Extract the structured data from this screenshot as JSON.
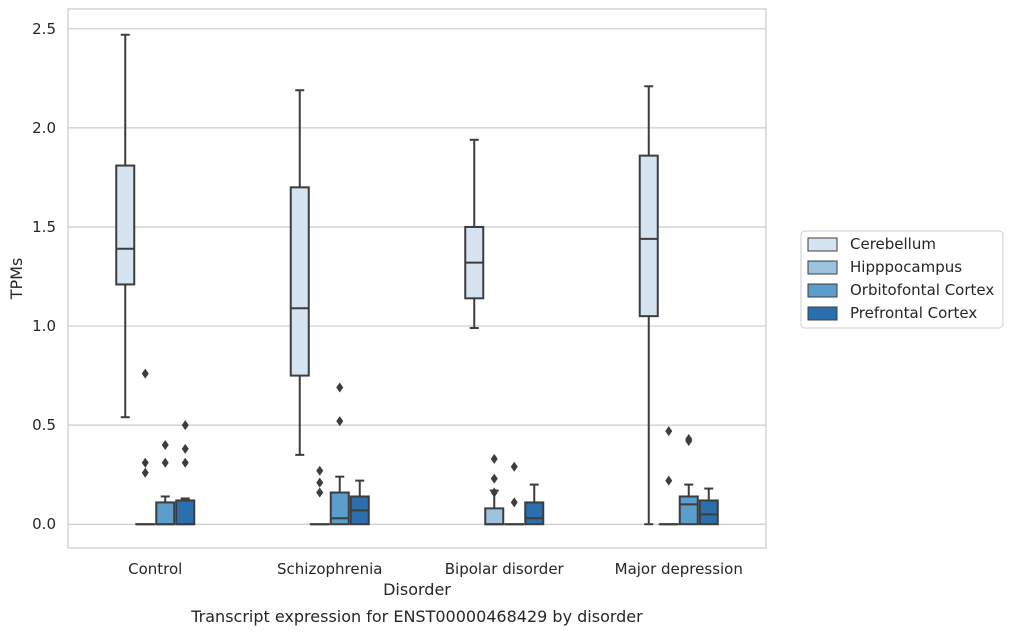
{
  "chart_data": {
    "type": "box",
    "title": "",
    "caption": "Transcript expression for ENST00000468429 by disorder",
    "xlabel": "Disorder",
    "ylabel": "TPMs",
    "ylim": [
      -0.12,
      2.6
    ],
    "yticks": [
      "0.0",
      "0.5",
      "1.0",
      "1.5",
      "2.0",
      "2.5"
    ],
    "grid": true,
    "legend_position": "right",
    "categories": [
      "Control",
      "Schizophrenia",
      "Bipolar disorder",
      "Major depression"
    ],
    "series": [
      {
        "name": "Cerebellum",
        "color": "#d6e3f1",
        "boxes": [
          {
            "whislo": 0.54,
            "q1": 1.21,
            "med": 1.39,
            "q3": 1.81,
            "whishi": 2.47,
            "fliers": []
          },
          {
            "whislo": 0.35,
            "q1": 0.75,
            "med": 1.09,
            "q3": 1.7,
            "whishi": 2.19,
            "fliers": []
          },
          {
            "whislo": 0.99,
            "q1": 1.14,
            "med": 1.32,
            "q3": 1.5,
            "whishi": 1.94,
            "fliers": []
          },
          {
            "whislo": 0.0,
            "q1": 1.05,
            "med": 1.44,
            "q3": 1.86,
            "whishi": 2.21,
            "fliers": []
          }
        ]
      },
      {
        "name": "Hipppocampus",
        "color": "#9ec3de",
        "boxes": [
          {
            "whislo": 0.0,
            "q1": 0.0,
            "med": 0.0,
            "q3": 0.0,
            "whishi": 0.0,
            "fliers": [
              0.26,
              0.31,
              0.76
            ]
          },
          {
            "whislo": 0.0,
            "q1": 0.0,
            "med": 0.0,
            "q3": 0.0,
            "whishi": 0.0,
            "fliers": [
              0.16,
              0.21,
              0.27
            ]
          },
          {
            "whislo": 0.0,
            "q1": 0.0,
            "med": 0.0,
            "q3": 0.08,
            "whishi": 0.17,
            "fliers": [
              0.16,
              0.33,
              0.23
            ]
          },
          {
            "whislo": 0.0,
            "q1": 0.0,
            "med": 0.0,
            "q3": 0.0,
            "whishi": 0.0,
            "fliers": [
              0.22,
              0.47
            ]
          }
        ]
      },
      {
        "name": "Orbitofontal Cortex",
        "color": "#5b9dcb",
        "boxes": [
          {
            "whislo": 0.0,
            "q1": 0.0,
            "med": 0.0,
            "q3": 0.11,
            "whishi": 0.14,
            "fliers": [
              0.31,
              0.4
            ]
          },
          {
            "whislo": 0.0,
            "q1": 0.0,
            "med": 0.03,
            "q3": 0.16,
            "whishi": 0.24,
            "fliers": [
              0.52,
              0.69
            ]
          },
          {
            "whislo": 0.0,
            "q1": 0.0,
            "med": 0.0,
            "q3": 0.0,
            "whishi": 0.0,
            "fliers": [
              0.11,
              0.29
            ]
          },
          {
            "whislo": 0.0,
            "q1": 0.0,
            "med": 0.1,
            "q3": 0.14,
            "whishi": 0.2,
            "fliers": [
              0.42,
              0.43
            ]
          }
        ]
      },
      {
        "name": "Prefrontal Cortex",
        "color": "#2b6fae",
        "boxes": [
          {
            "whislo": 0.0,
            "q1": 0.0,
            "med": 0.0,
            "q3": 0.12,
            "whishi": 0.13,
            "fliers": [
              0.31,
              0.38,
              0.5
            ]
          },
          {
            "whislo": 0.0,
            "q1": 0.0,
            "med": 0.07,
            "q3": 0.14,
            "whishi": 0.22,
            "fliers": []
          },
          {
            "whislo": 0.0,
            "q1": 0.0,
            "med": 0.03,
            "q3": 0.11,
            "whishi": 0.2,
            "fliers": []
          },
          {
            "whislo": 0.0,
            "q1": 0.0,
            "med": 0.05,
            "q3": 0.12,
            "whishi": 0.18,
            "fliers": []
          }
        ]
      }
    ]
  }
}
